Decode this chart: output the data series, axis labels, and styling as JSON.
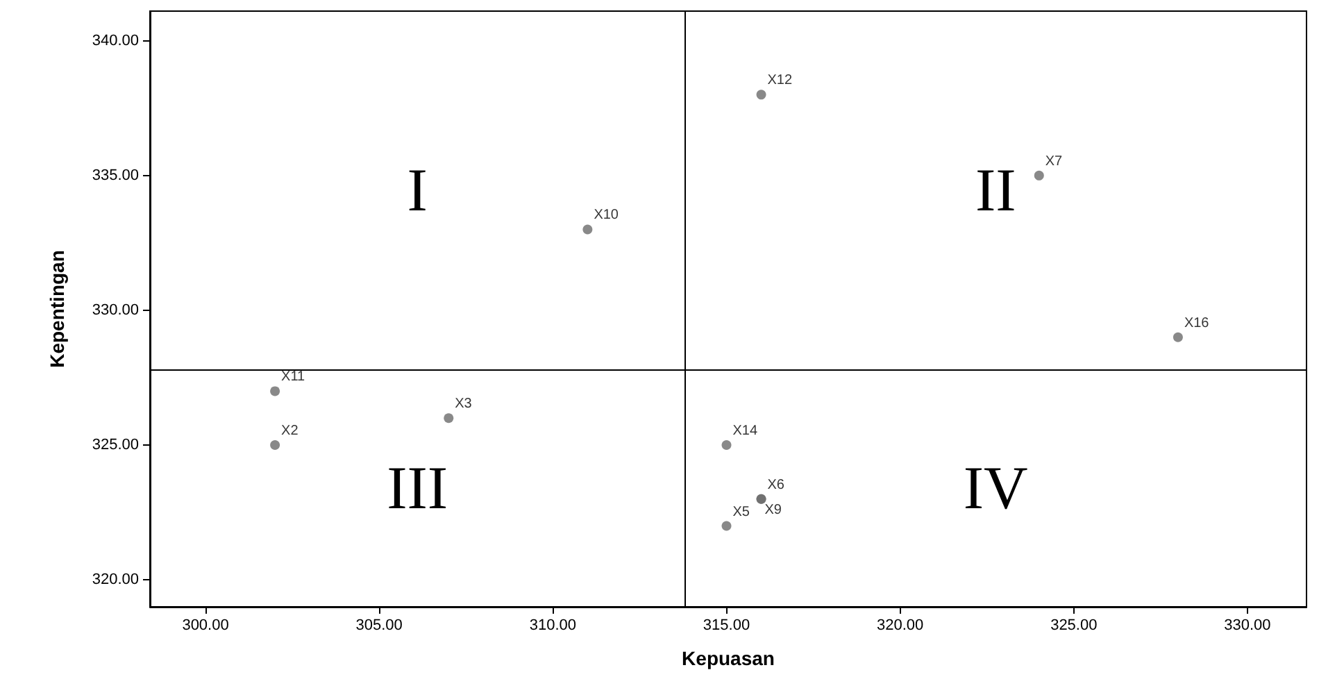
{
  "chart_data": {
    "type": "scatter",
    "xlabel": "Kepuasan",
    "ylabel": "Kepentingan",
    "x": [
      316,
      324,
      311,
      328,
      302,
      302,
      307,
      315,
      316,
      315,
      316
    ],
    "values": [
      338,
      335,
      333,
      329,
      327,
      325,
      326,
      325,
      323,
      322,
      323
    ],
    "value_labels": [
      "X12",
      "X7",
      "X10",
      "X16",
      "X11",
      "X2",
      "X3",
      "X14",
      "X6",
      "X5",
      "X9"
    ],
    "color": "#6b6b6b",
    "marker": "circle",
    "grid": false,
    "xlim": [
      298.4,
      331.7
    ],
    "xticks": [
      {
        "value": 300,
        "label": "300.00"
      },
      {
        "value": 305,
        "label": "305.00"
      },
      {
        "value": 310,
        "label": "310.00"
      },
      {
        "value": 315,
        "label": "315.00"
      },
      {
        "value": 320,
        "label": "320.00"
      },
      {
        "value": 325,
        "label": "325.00"
      },
      {
        "value": 330,
        "label": "330.00"
      }
    ],
    "ylim": [
      319,
      341.1
    ],
    "yticks": [
      {
        "value": 320,
        "label": "320.00"
      },
      {
        "value": 325,
        "label": "325.00"
      },
      {
        "value": 330,
        "label": "330.00"
      },
      {
        "value": 335,
        "label": "335.00"
      },
      {
        "value": 340,
        "label": "340.00"
      }
    ],
    "ref_lines": [
      {
        "axis": "x",
        "value": 313.8,
        "color": "#000000"
      },
      {
        "axis": "y",
        "value": 327.8,
        "color": "#000000"
      }
    ],
    "annotations": [
      "I",
      "II",
      "III",
      "IV"
    ]
  }
}
